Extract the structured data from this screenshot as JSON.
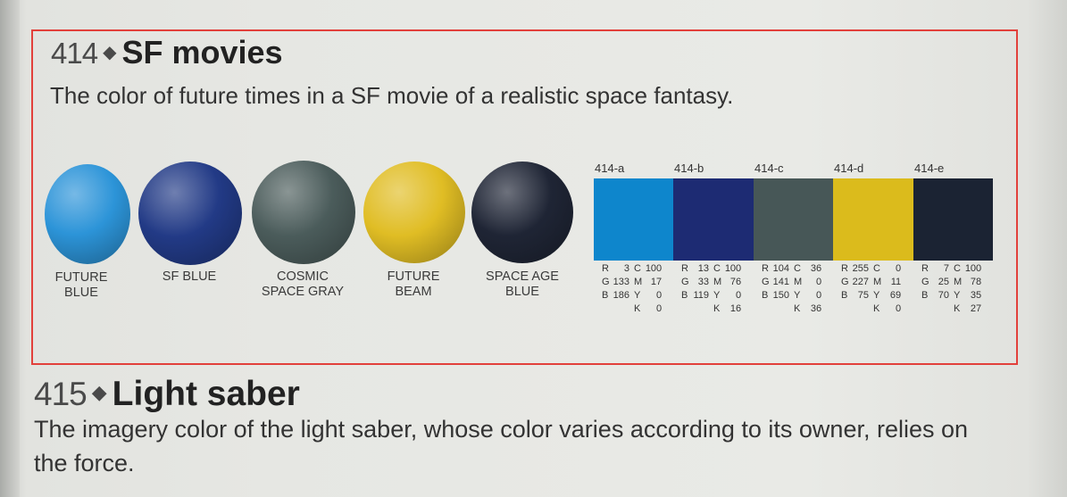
{
  "entry_414": {
    "number": "414",
    "title": "SF movies",
    "description": "The color of future times in a SF movie of a realistic space fantasy.",
    "spheres": [
      {
        "label_line1": "FUTURE",
        "label_line2": "BLUE",
        "color": "#2c94d8"
      },
      {
        "label_line1": "SF BLUE",
        "label_line2": "",
        "color": "#223a86"
      },
      {
        "label_line1": "COSMIC",
        "label_line2": "SPACE GRAY",
        "color": "#4b5c5b"
      },
      {
        "label_line1": "FUTURE",
        "label_line2": "BEAM",
        "color": "#e0bd24"
      },
      {
        "label_line1": "SPACE AGE",
        "label_line2": "BLUE",
        "color": "#1f2535"
      }
    ],
    "swatches": [
      {
        "code": "414-a",
        "color": "#0e86cc",
        "R": "3",
        "G": "133",
        "B": "186",
        "C": "100",
        "M": "17",
        "Y": "0",
        "K": "0"
      },
      {
        "code": "414-b",
        "color": "#1d2b73",
        "R": "13",
        "G": "33",
        "B": "119",
        "C": "100",
        "M": "76",
        "Y": "0",
        "K": "16"
      },
      {
        "code": "414-c",
        "color": "#475757",
        "R": "104",
        "G": "141",
        "B": "150",
        "C": "36",
        "M": "0",
        "Y": "0",
        "K": "36"
      },
      {
        "code": "414-d",
        "color": "#dbbb1c",
        "R": "255",
        "G": "227",
        "B": "75",
        "C": "0",
        "M": "11",
        "Y": "69",
        "K": "0"
      },
      {
        "code": "414-e",
        "color": "#1b2333",
        "R": "7",
        "G": "25",
        "B": "70",
        "C": "100",
        "M": "78",
        "Y": "35",
        "K": "27"
      }
    ]
  },
  "entry_415": {
    "number": "415",
    "title": "Light saber",
    "description": "The imagery color of the light saber, whose color varies according to its owner, relies on the force."
  },
  "selection_color": "#e2403b"
}
